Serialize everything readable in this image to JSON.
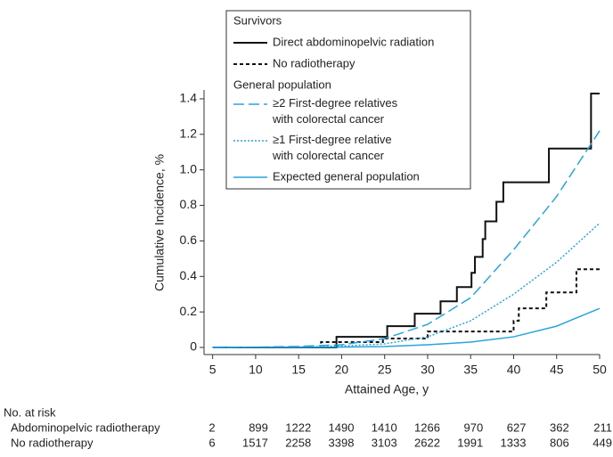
{
  "chart_data": {
    "type": "step-line",
    "x_label": "Attained Age, y",
    "y_label": "Cumulative Incidence, %",
    "xlim": [
      4,
      50
    ],
    "ylim": [
      -0.04,
      1.5
    ],
    "xticks": [
      5,
      10,
      15,
      20,
      25,
      30,
      35,
      40,
      45,
      50
    ],
    "yticks": [
      0,
      0.2,
      0.4,
      0.6,
      0.8,
      {
        "value": 1,
        "label": "1.0"
      },
      1.2,
      1.4
    ],
    "legend_titles": [
      "Survivors",
      "General population"
    ],
    "series": [
      {
        "name": "Direct abdominopelvic radiation",
        "color": "#111111",
        "dash": "solid",
        "step": true,
        "x": [
          5,
          19.4,
          25.3,
          28.5,
          31.5,
          33.4,
          35.1,
          35.5,
          36.4,
          36.7,
          38.0,
          38.8,
          44.1,
          49.0,
          50
        ],
        "values": [
          0,
          0.06,
          0.12,
          0.19,
          0.26,
          0.34,
          0.42,
          0.51,
          0.61,
          0.71,
          0.82,
          0.93,
          1.12,
          1.43,
          1.43
        ]
      },
      {
        "name": "No radiotherapy",
        "color": "#111111",
        "dash": "dashed",
        "step": true,
        "x": [
          5,
          17.6,
          24.8,
          30.0,
          40.0,
          40.6,
          43.8,
          47.3,
          50
        ],
        "values": [
          0,
          0.03,
          0.05,
          0.09,
          0.15,
          0.22,
          0.31,
          0.44,
          0.44
        ]
      },
      {
        "name": "≥2 First-degree relatives with colorectal cancer",
        "color": "#2aa3dc",
        "dash": "long-dash",
        "step": false,
        "x": [
          5,
          10,
          15,
          20,
          25,
          30,
          35,
          40,
          45,
          50
        ],
        "values": [
          0,
          0.002,
          0.006,
          0.015,
          0.05,
          0.13,
          0.28,
          0.55,
          0.85,
          1.22
        ]
      },
      {
        "name": "≥1 First-degree relative with colorectal cancer",
        "color": "#2aa3dc",
        "dash": "dotted",
        "step": false,
        "x": [
          5,
          10,
          15,
          20,
          25,
          30,
          35,
          40,
          45,
          50
        ],
        "values": [
          0,
          0.001,
          0.003,
          0.008,
          0.02,
          0.06,
          0.15,
          0.3,
          0.48,
          0.7
        ]
      },
      {
        "name": "Expected general population",
        "color": "#2aa3dc",
        "dash": "solid",
        "step": false,
        "x": [
          5,
          10,
          15,
          20,
          25,
          30,
          35,
          40,
          45,
          50
        ],
        "values": [
          0,
          0.0005,
          0.001,
          0.002,
          0.005,
          0.015,
          0.03,
          0.06,
          0.12,
          0.22
        ]
      }
    ],
    "risk_table": {
      "title": "No. at risk",
      "rows": [
        {
          "label": "Abdominopelvic radiotherapy",
          "counts": [
            "2",
            "899",
            "1222",
            "1490",
            "1410",
            "1266",
            "970",
            "627",
            "362",
            "211"
          ]
        },
        {
          "label": "No radiotherapy",
          "counts": [
            "6",
            "1517",
            "2258",
            "3398",
            "3103",
            "2622",
            "1991",
            "1333",
            "806",
            "449"
          ]
        }
      ]
    }
  }
}
